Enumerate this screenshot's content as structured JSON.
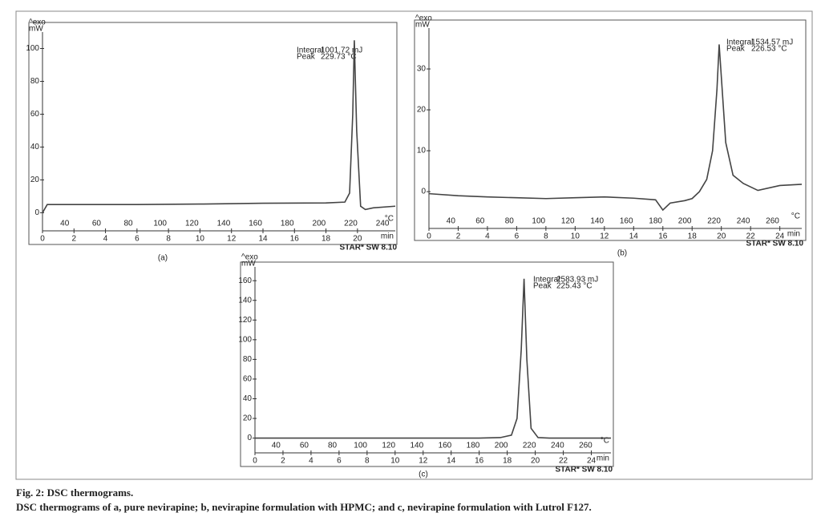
{
  "chart_data": [
    {
      "type": "line",
      "panel_label": "(a)",
      "exo_label": "^exo",
      "y_unit": "mW",
      "x_label": "min",
      "x2_label": "°C",
      "software": "STAR* SW 8.10",
      "annotations": [
        "Integral",
        "1001.72 mJ",
        "Peak",
        "229.73 °C"
      ],
      "color": "#444",
      "xlim": [
        0,
        22.4
      ],
      "xticks": [
        0,
        2,
        4,
        6,
        8,
        10,
        12,
        14,
        16,
        18,
        20
      ],
      "x2lim": [
        26,
        248
      ],
      "x2ticks": [
        40,
        60,
        80,
        100,
        120,
        140,
        160,
        180,
        200,
        220,
        240
      ],
      "ylim": [
        -11,
        110
      ],
      "yticks": [
        0,
        20,
        40,
        60,
        80,
        100
      ],
      "x": [
        0,
        0.3,
        2,
        6,
        10,
        14,
        18,
        19.2,
        19.5,
        19.7,
        19.8,
        19.95,
        20.2,
        20.5,
        21,
        22.4
      ],
      "values": [
        0,
        5,
        5,
        5,
        5.3,
        5.8,
        6,
        6.5,
        12,
        60,
        105,
        50,
        4,
        2,
        3,
        4
      ]
    },
    {
      "type": "line",
      "panel_label": "(b)",
      "exo_label": "^exo",
      "y_unit": "mW",
      "x_label": "min",
      "x2_label": "°C",
      "software": "STAR* SW 8.10",
      "annotations": [
        "Integral",
        "1534.57 mJ",
        "Peak",
        "226.53 °C"
      ],
      "color": "#444",
      "xlim": [
        0,
        25.5
      ],
      "xticks": [
        0,
        2,
        4,
        6,
        8,
        10,
        12,
        14,
        16,
        18,
        20,
        22,
        24
      ],
      "x2lim": [
        25,
        280
      ],
      "x2ticks": [
        40,
        60,
        80,
        100,
        120,
        140,
        160,
        180,
        200,
        220,
        240,
        260
      ],
      "ylim": [
        -9,
        40
      ],
      "yticks": [
        0,
        10,
        20,
        30
      ],
      "x": [
        0,
        2,
        4,
        6,
        8,
        10,
        12,
        14,
        15.5,
        16,
        16.5,
        17.5,
        18,
        18.5,
        19,
        19.4,
        19.7,
        19.85,
        20,
        20.3,
        20.8,
        21.5,
        22.5,
        24,
        25.5
      ],
      "values": [
        -0.5,
        -1,
        -1.3,
        -1.5,
        -1.7,
        -1.5,
        -1.3,
        -1.6,
        -2,
        -4.5,
        -2.8,
        -2.2,
        -1.7,
        0,
        3,
        10,
        25,
        36,
        28,
        12,
        4,
        2,
        0.3,
        1.5,
        1.8
      ]
    },
    {
      "type": "line",
      "panel_label": "(c)",
      "exo_label": "^exo",
      "y_unit": "mW",
      "x_label": "min",
      "x2_label": "°C",
      "software": "STAR* SW 8.10",
      "annotations": [
        "Integral",
        "2583.93 mJ",
        "Peak",
        "225.43 °C"
      ],
      "color": "#444",
      "xlim": [
        0,
        25.4
      ],
      "xticks": [
        0,
        2,
        4,
        6,
        8,
        10,
        12,
        14,
        16,
        18,
        20,
        22,
        24
      ],
      "x2lim": [
        25,
        278
      ],
      "x2ticks": [
        40,
        60,
        80,
        100,
        120,
        140,
        160,
        180,
        200,
        220,
        240,
        260
      ],
      "ylim": [
        -15,
        174
      ],
      "yticks": [
        0,
        20,
        40,
        60,
        80,
        100,
        120,
        140,
        160
      ],
      "x": [
        0,
        2,
        4,
        6,
        8,
        10,
        12,
        14,
        16,
        17.5,
        18.3,
        18.7,
        19.0,
        19.2,
        19.4,
        19.7,
        20.2,
        21,
        23,
        25.4
      ],
      "values": [
        0,
        0,
        0,
        0,
        0,
        0,
        0,
        0,
        0,
        0.5,
        3,
        20,
        90,
        162,
        80,
        10,
        0.5,
        0,
        0,
        0
      ]
    }
  ],
  "caption": {
    "title": "Fig. 2: DSC thermograms.",
    "text": "DSC thermograms of a, pure nevirapine; b, nevirapine formulation with HPMC; and c, nevirapine formulation with Lutrol F127."
  }
}
